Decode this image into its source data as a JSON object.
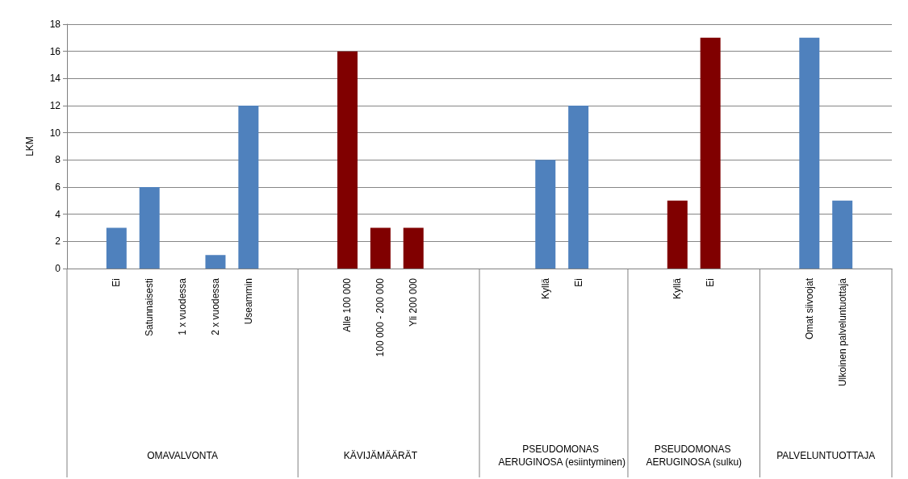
{
  "chart_data": {
    "type": "bar",
    "categories": [
      null,
      "Ei",
      "Satunnaisesti",
      "1 x vuodessa",
      "2 x vuodessa",
      "Useammin",
      null,
      null,
      "Alle 100 000",
      "100 000 - 200 000",
      "Yli 200 000",
      null,
      null,
      null,
      "Kyllä",
      "Ei",
      null,
      null,
      "Kyllä",
      "Ei",
      null,
      null,
      "Omat siivoojat",
      "Ulkoinen palveluntuottaja",
      null
    ],
    "values": [
      null,
      3,
      6,
      0,
      1,
      12,
      null,
      null,
      16,
      3,
      3,
      null,
      null,
      null,
      8,
      12,
      null,
      null,
      5,
      17,
      null,
      null,
      17,
      5,
      null
    ],
    "colors": [
      "#4f81bd",
      "#4f81bd",
      "#4f81bd",
      "#4f81bd",
      "#4f81bd",
      "#4f81bd",
      "#4f81bd",
      "#800000",
      "#800000",
      "#800000",
      "#800000",
      "#800000",
      "#4f81bd",
      "#4f81bd",
      "#4f81bd",
      "#4f81bd",
      "#4f81bd",
      "#800000",
      "#800000",
      "#800000",
      "#800000",
      "#4f81bd",
      "#4f81bd",
      "#4f81bd",
      "#4f81bd"
    ],
    "ylabel": "LKM",
    "ylim": [
      0,
      18
    ],
    "yticks": [
      0,
      2,
      4,
      6,
      8,
      10,
      12,
      14,
      16,
      18
    ],
    "grid": "y",
    "annotations": [
      "OMAVALVONTA",
      "KÄVIJÄMÄÄRÄT",
      "PSEUDOMONAS AERUGINOSA (esiintyminen)",
      "PSEUDOMONAS AERUGINOSA (sulku)",
      "PALVELUNTUOTTAJA"
    ]
  }
}
